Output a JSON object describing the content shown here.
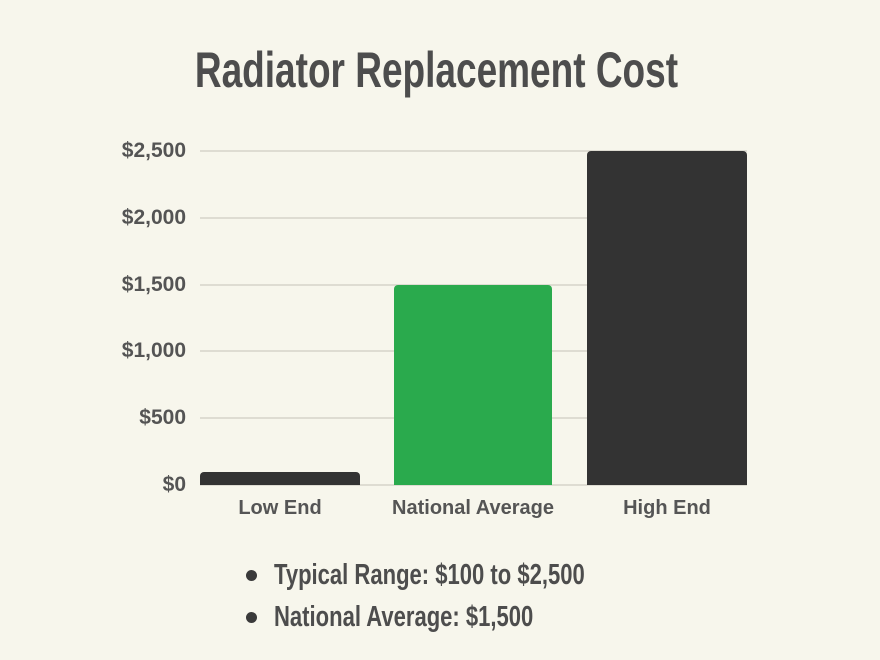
{
  "title": "Radiator Replacement Cost",
  "chart_data": {
    "type": "bar",
    "title": "Radiator Replacement Cost",
    "categories": [
      "Low End",
      "National Average",
      "High End"
    ],
    "values": [
      100,
      1500,
      2500
    ],
    "bar_colors": [
      "#333333",
      "#2aaa4d",
      "#333333"
    ],
    "ylim": [
      0,
      2500
    ],
    "y_ticks": [
      0,
      500,
      1000,
      1500,
      2000,
      2500
    ],
    "y_tick_labels": [
      "$0",
      "$500",
      "$1,000",
      "$1,500",
      "$2,000",
      "$2,500"
    ],
    "xlabel": "",
    "ylabel": "",
    "grid": true,
    "legend": "none"
  },
  "notes": {
    "bullet_items": [
      "Typical Range: $100 to $2,500",
      "National Average: $1,500"
    ]
  },
  "colors": {
    "background": "#f7f6ec",
    "bar_dark": "#333333",
    "bar_accent_green": "#2aaa4d",
    "title_text": "#4d4d4d",
    "axis_text": "#555555",
    "gridline": "#dedcd2",
    "bullet_dot": "#3a3a3a"
  }
}
